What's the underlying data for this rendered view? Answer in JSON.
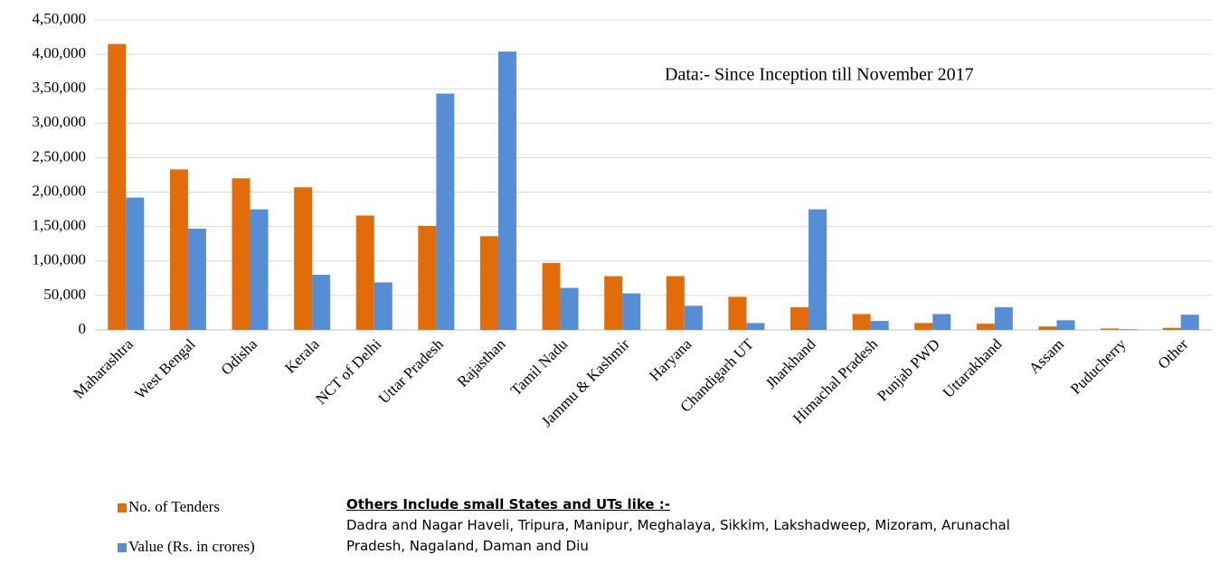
{
  "chart_data": {
    "type": "bar",
    "annotation": "Data:- Since Inception till November 2017",
    "categories": [
      "Maharashtra",
      "West Bengal",
      "Odisha",
      "Kerala",
      "NCT of Delhi",
      "Uttar Pradesh",
      "Rajasthan",
      "Tamil Nadu",
      "Jammu & Kashmir",
      "Haryana",
      "Chandigarh UT",
      "Jharkhand",
      "Himachal Pradesh",
      "Punjab PWD",
      "Uttarakhand",
      "Assam",
      "Puducherry",
      "Other"
    ],
    "series": [
      {
        "name": "No. of Tenders",
        "color": "#e36c0a",
        "values": [
          415000,
          233000,
          220000,
          207000,
          166000,
          151000,
          136000,
          97000,
          78000,
          78000,
          48000,
          33000,
          23000,
          10000,
          9000,
          5000,
          2000,
          3000
        ]
      },
      {
        "name": "Value  (Rs. in crores)",
        "color": "#558ed5",
        "values": [
          192000,
          147000,
          175000,
          80000,
          69000,
          343000,
          404000,
          61000,
          53000,
          35000,
          10000,
          175000,
          13000,
          23000,
          33000,
          14000,
          1000,
          22000
        ]
      }
    ],
    "ylim": [
      0,
      450000
    ],
    "yticks": [
      0,
      {
        "value": 50000,
        "label": "50,000"
      },
      {
        "value": 100000,
        "label": "1,00,000"
      },
      {
        "value": 150000,
        "label": "1,50,000"
      },
      {
        "value": 200000,
        "label": "2,00,000"
      },
      {
        "value": 250000,
        "label": "2,50,000"
      },
      {
        "value": 300000,
        "label": "3,00,000"
      },
      {
        "value": 350000,
        "label": "3,50,000"
      },
      {
        "value": 400000,
        "label": "4,00,000"
      },
      {
        "value": 450000,
        "label": "4,50,000"
      }
    ],
    "grid": true,
    "note": {
      "title": "Others Include small States and UTs like :-",
      "text": "Dadra and Nagar Haveli, Tripura, Manipur, Meghalaya, Sikkim, Lakshadweep, Mizoram, Arunachal Pradesh, Nagaland, Daman and Diu"
    }
  }
}
